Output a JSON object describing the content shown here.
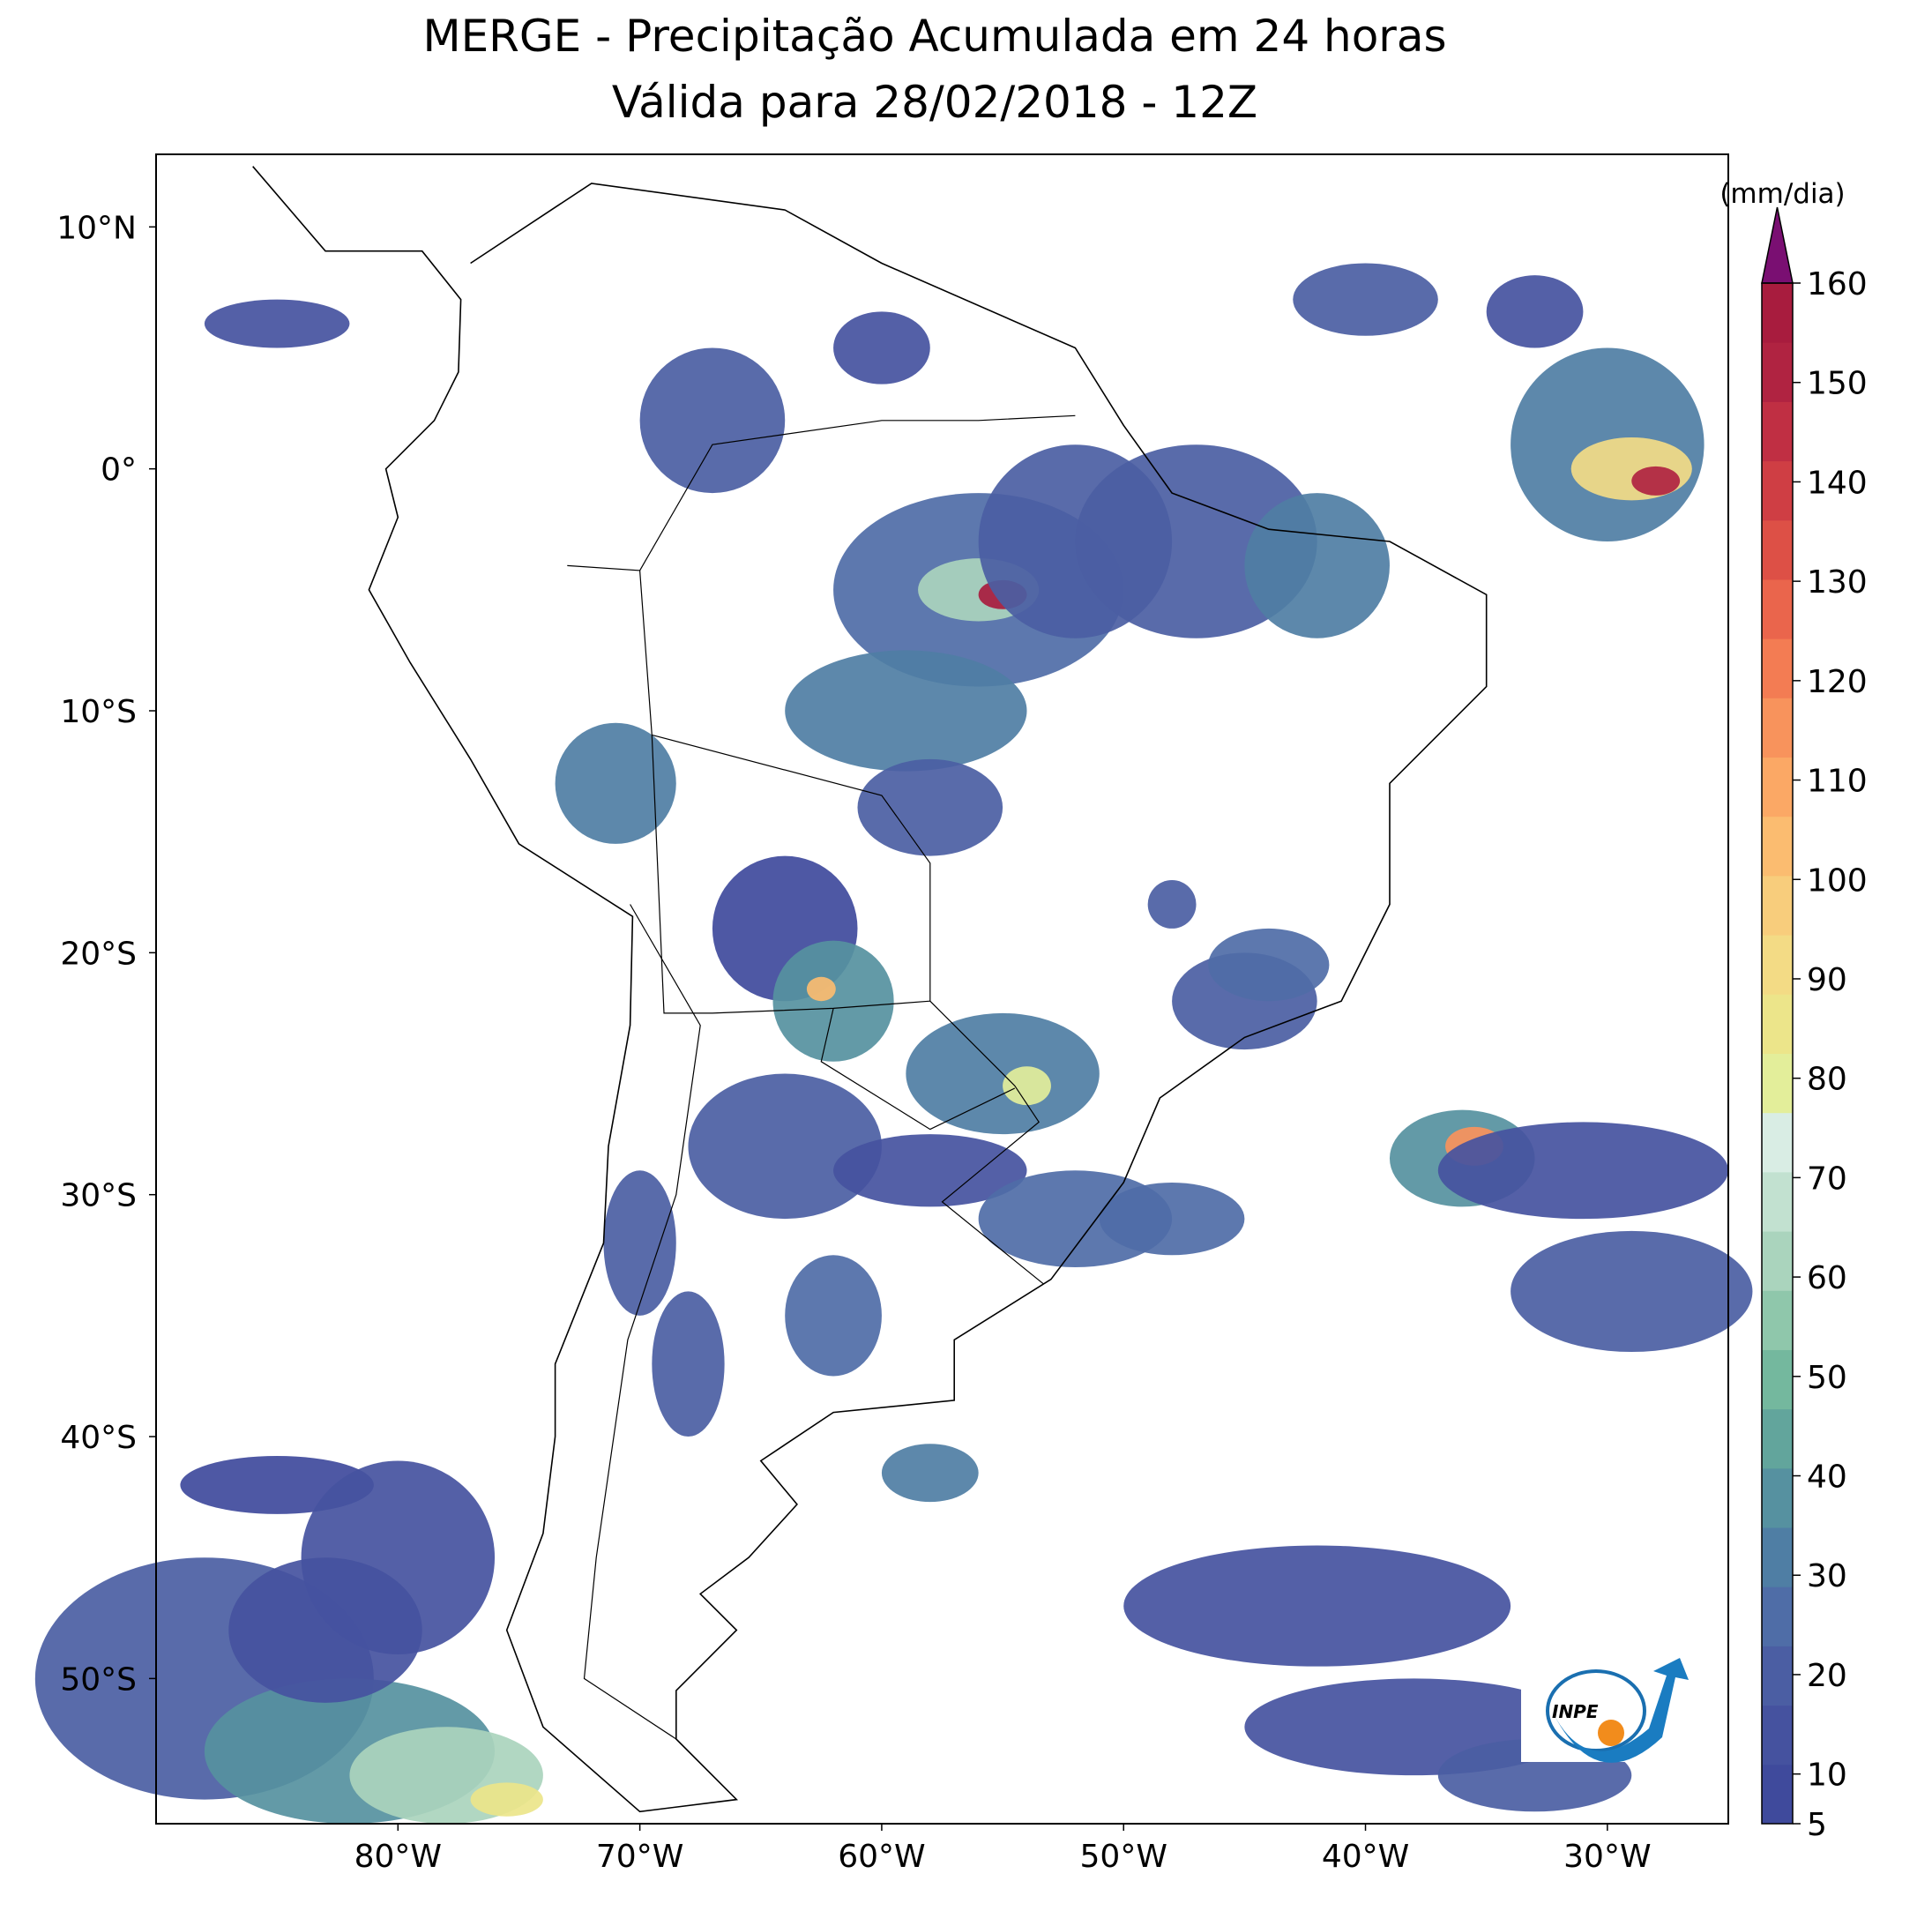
{
  "chart_data": {
    "type": "map",
    "title": "MERGE - Precipitação Acumulada em 24 horas",
    "subtitle": "Válida para 28/02/2018 - 12Z",
    "xlim": [
      -90,
      -25
    ],
    "ylim": [
      -56,
      13
    ],
    "xticks": [
      {
        "value": -80,
        "label": "80°W"
      },
      {
        "value": -70,
        "label": "70°W"
      },
      {
        "value": -60,
        "label": "60°W"
      },
      {
        "value": -50,
        "label": "50°W"
      },
      {
        "value": -40,
        "label": "40°W"
      },
      {
        "value": -30,
        "label": "30°W"
      }
    ],
    "yticks": [
      {
        "value": 10,
        "label": "10°N"
      },
      {
        "value": 0,
        "label": "0°"
      },
      {
        "value": -10,
        "label": "10°S"
      },
      {
        "value": -20,
        "label": "20°S"
      },
      {
        "value": -30,
        "label": "30°S"
      },
      {
        "value": -40,
        "label": "40°S"
      },
      {
        "value": -50,
        "label": "50°S"
      }
    ],
    "colorbar": {
      "label": "(mm/dia)",
      "lim": [
        5,
        160
      ],
      "ticks": [
        5,
        10,
        20,
        30,
        40,
        50,
        60,
        70,
        80,
        90,
        100,
        110,
        120,
        130,
        140,
        150,
        160
      ],
      "colors": [
        "#3f4a9c",
        "#45529f",
        "#4b5ea3",
        "#4f6da7",
        "#4f7ea4",
        "#5691a0",
        "#62a59c",
        "#74b89e",
        "#8fc7ab",
        "#aad4bd",
        "#c2e1d0",
        "#d9ede4",
        "#e3ee9a",
        "#ece58a",
        "#f3db85",
        "#f8cd7c",
        "#fbbc70",
        "#fba865",
        "#f8935c",
        "#f37c53",
        "#ea654c",
        "#dd5046",
        "#cf3e44",
        "#c02f43",
        "#b02341",
        "#a81c3e"
      ],
      "extend_color": "#7a0f72"
    }
  }
}
